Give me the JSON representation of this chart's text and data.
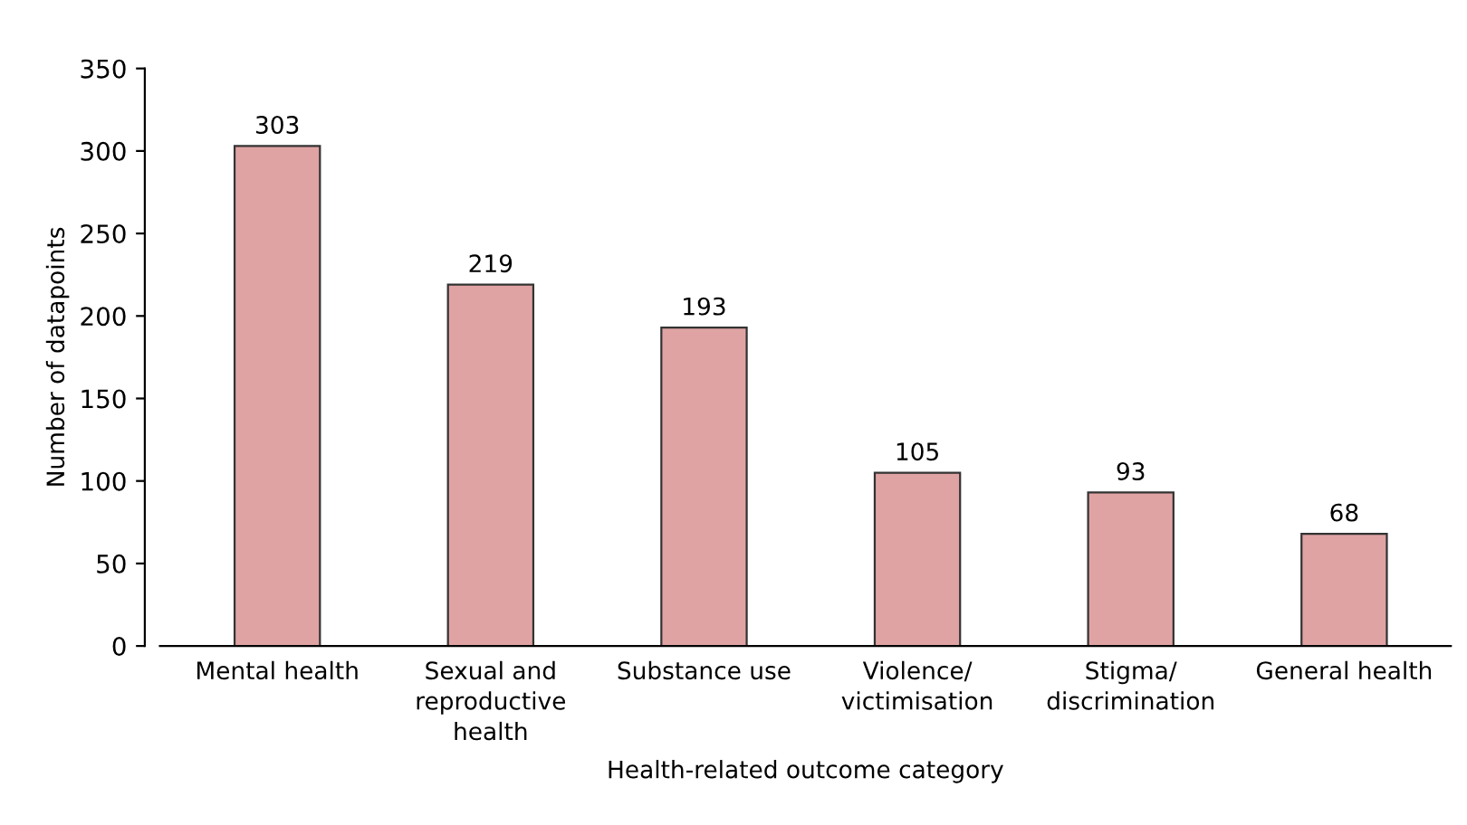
{
  "chart_data": {
    "type": "bar",
    "xlabel": "Health-related outcome category",
    "ylabel": "Number of datapoints",
    "categories": [
      "Mental health",
      "Sexual and\nreproductive\nhealth",
      "Substance use",
      "Violence/\nvictimisation",
      "Stigma/\ndiscrimination",
      "General health"
    ],
    "values": [
      303,
      219,
      193,
      105,
      93,
      68
    ],
    "color": "#e0a3a3",
    "ylim": [
      0,
      350
    ],
    "yticks": [
      0,
      50,
      100,
      150,
      200,
      250,
      300,
      350
    ],
    "data_labels": true,
    "grid": false,
    "legend": false
  }
}
